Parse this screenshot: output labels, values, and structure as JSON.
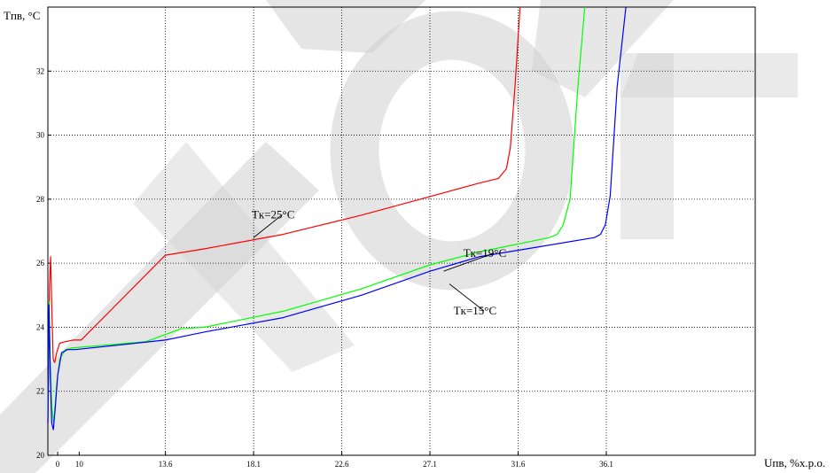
{
  "chart_data": {
    "type": "line",
    "xlabel": "Uпв, %х.р.о.",
    "ylabel": "Tпв, °С",
    "xlim": [
      0,
      36.1
    ],
    "ylim": [
      20,
      34
    ],
    "x_ticks": [
      {
        "value": 0.5,
        "label": "0"
      },
      {
        "value": 1.6,
        "label": "10"
      },
      {
        "value": 6.0,
        "label": "13.6"
      },
      {
        "value": 10.5,
        "label": "18.1"
      },
      {
        "value": 15.0,
        "label": "22.6"
      },
      {
        "value": 19.5,
        "label": "27.1"
      },
      {
        "value": 24.0,
        "label": "31.6"
      },
      {
        "value": 28.5,
        "label": "36.1"
      }
    ],
    "y_ticks": [
      20,
      22,
      24,
      26,
      28,
      30,
      32
    ],
    "grid": true,
    "series": [
      {
        "color": "#ff0000",
        "x": [
          0.0,
          0.08,
          0.14,
          0.2,
          0.27,
          0.35,
          0.45,
          0.6,
          0.9,
          1.3,
          1.7,
          6.0,
          8.0,
          12.0,
          16.0,
          19.0,
          22.0,
          23.0,
          23.4,
          23.6,
          23.85,
          24.1
        ],
        "y": [
          21.0,
          25.3,
          26.2,
          24.6,
          23.0,
          22.9,
          23.2,
          23.5,
          23.55,
          23.6,
          23.6,
          26.25,
          26.45,
          26.9,
          27.5,
          28.0,
          28.5,
          28.65,
          28.95,
          29.6,
          31.6,
          34.0
        ]
      },
      {
        "color": "#00ff00",
        "x": [
          0.0,
          0.06,
          0.12,
          0.2,
          0.3,
          0.45,
          0.6,
          0.9,
          1.2,
          5.0,
          6.8,
          8.0,
          12.0,
          16.0,
          19.5,
          22.0,
          25.6,
          26.0,
          26.3,
          26.65,
          27.05,
          27.4
        ],
        "y": [
          21.0,
          24.8,
          23.0,
          21.5,
          21.0,
          22.2,
          23.0,
          23.3,
          23.35,
          23.55,
          23.95,
          24.0,
          24.5,
          25.2,
          25.95,
          26.35,
          26.8,
          26.9,
          27.2,
          28.0,
          31.5,
          34.0
        ]
      },
      {
        "color": "#0000ff",
        "x": [
          0.0,
          0.06,
          0.12,
          0.2,
          0.28,
          0.38,
          0.5,
          0.7,
          1.0,
          1.4,
          6.0,
          8.0,
          12.0,
          16.0,
          19.5,
          22.0,
          27.9,
          28.2,
          28.45,
          28.7,
          29.05,
          29.5
        ],
        "y": [
          21.0,
          24.7,
          22.5,
          21.0,
          20.8,
          21.5,
          22.5,
          23.2,
          23.3,
          23.3,
          23.6,
          23.85,
          24.3,
          25.0,
          25.75,
          26.2,
          26.8,
          26.9,
          27.2,
          28.1,
          31.5,
          34.0
        ]
      }
    ],
    "annotations": [
      {
        "text": "Tк=25°С",
        "x": 11.5,
        "y": 27.4,
        "point_x": 10.5,
        "point_y": 26.8
      },
      {
        "text": "Tк=19°С",
        "x": 22.3,
        "y": 26.2,
        "point_x": 20.2,
        "point_y": 25.75
      },
      {
        "text": "Tк=15°С",
        "x": 21.8,
        "y": 24.4,
        "point_x": 20.5,
        "point_y": 25.35
      }
    ]
  },
  "watermark": {
    "color": "#d0d0d0"
  }
}
